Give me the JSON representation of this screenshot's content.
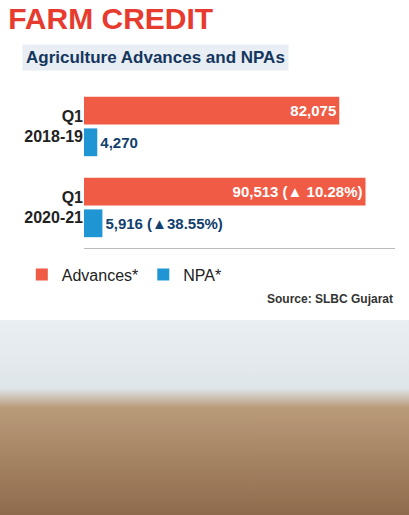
{
  "chart_data": {
    "type": "bar",
    "orientation": "horizontal",
    "title": "FARM CREDIT",
    "subtitle": "Agriculture Advances and NPAs",
    "categories": [
      "Q1 2018-19",
      "Q1 2020-21"
    ],
    "series": [
      {
        "name": "Advances*",
        "color": "#ef5b45",
        "values": [
          82075,
          90513
        ],
        "value_labels": [
          "82,075",
          "90,513 (▲ 10.28%)"
        ]
      },
      {
        "name": "NPA*",
        "color": "#1f95d4",
        "values": [
          4270,
          5916
        ],
        "value_labels": [
          "4,270",
          "5,916 (▲38.55%)"
        ]
      }
    ],
    "xlim": [
      0,
      100000
    ],
    "grid": false,
    "data_labels": true,
    "tick_labels": "y",
    "legend": "bottom",
    "source": "Source: SLBC Gujarat"
  }
}
